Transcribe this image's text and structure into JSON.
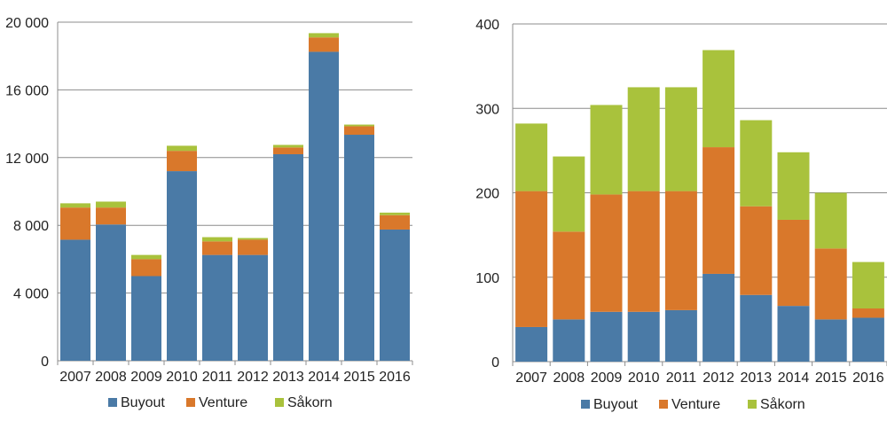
{
  "chart_data": [
    {
      "type": "bar",
      "stacked": true,
      "categories": [
        "2007",
        "2008",
        "2009",
        "2010",
        "2011",
        "2012",
        "2013",
        "2014",
        "2015",
        "2016"
      ],
      "series": [
        {
          "name": "Buyout",
          "color": "#4a7aa6",
          "values": [
            7150,
            8050,
            5000,
            11200,
            6250,
            6250,
            12200,
            18250,
            13350,
            7750
          ]
        },
        {
          "name": "Venture",
          "color": "#d9782b",
          "values": [
            1900,
            1000,
            1000,
            1200,
            800,
            900,
            400,
            850,
            500,
            850
          ]
        },
        {
          "name": "Såkorn",
          "color": "#a9c23c",
          "values": [
            250,
            350,
            250,
            300,
            250,
            100,
            150,
            250,
            100,
            150
          ]
        }
      ],
      "ylim": [
        0,
        20000
      ],
      "yticks": [
        0,
        4000,
        8000,
        12000,
        16000,
        20000
      ],
      "ytick_labels": [
        "0",
        "4 000",
        "8 000",
        "12 000",
        "16 000",
        "20 000"
      ],
      "grid": true,
      "legend": "bottom"
    },
    {
      "type": "bar",
      "stacked": true,
      "categories": [
        "2007",
        "2008",
        "2009",
        "2010",
        "2011",
        "2012",
        "2013",
        "2014",
        "2015",
        "2016"
      ],
      "series": [
        {
          "name": "Buyout",
          "color": "#4a7aa6",
          "values": [
            41,
            50,
            59,
            59,
            61,
            104,
            79,
            66,
            50,
            52
          ]
        },
        {
          "name": "Venture",
          "color": "#d9782b",
          "values": [
            161,
            104,
            139,
            143,
            141,
            150,
            105,
            102,
            84,
            11
          ]
        },
        {
          "name": "Såkorn",
          "color": "#a9c23c",
          "values": [
            80,
            89,
            106,
            123,
            123,
            115,
            102,
            80,
            66,
            55
          ]
        }
      ],
      "ylim": [
        0,
        400
      ],
      "yticks": [
        0,
        100,
        200,
        300,
        400
      ],
      "ytick_labels": [
        "0",
        "100",
        "200",
        "300",
        "400"
      ],
      "grid": true,
      "legend": "bottom"
    }
  ]
}
